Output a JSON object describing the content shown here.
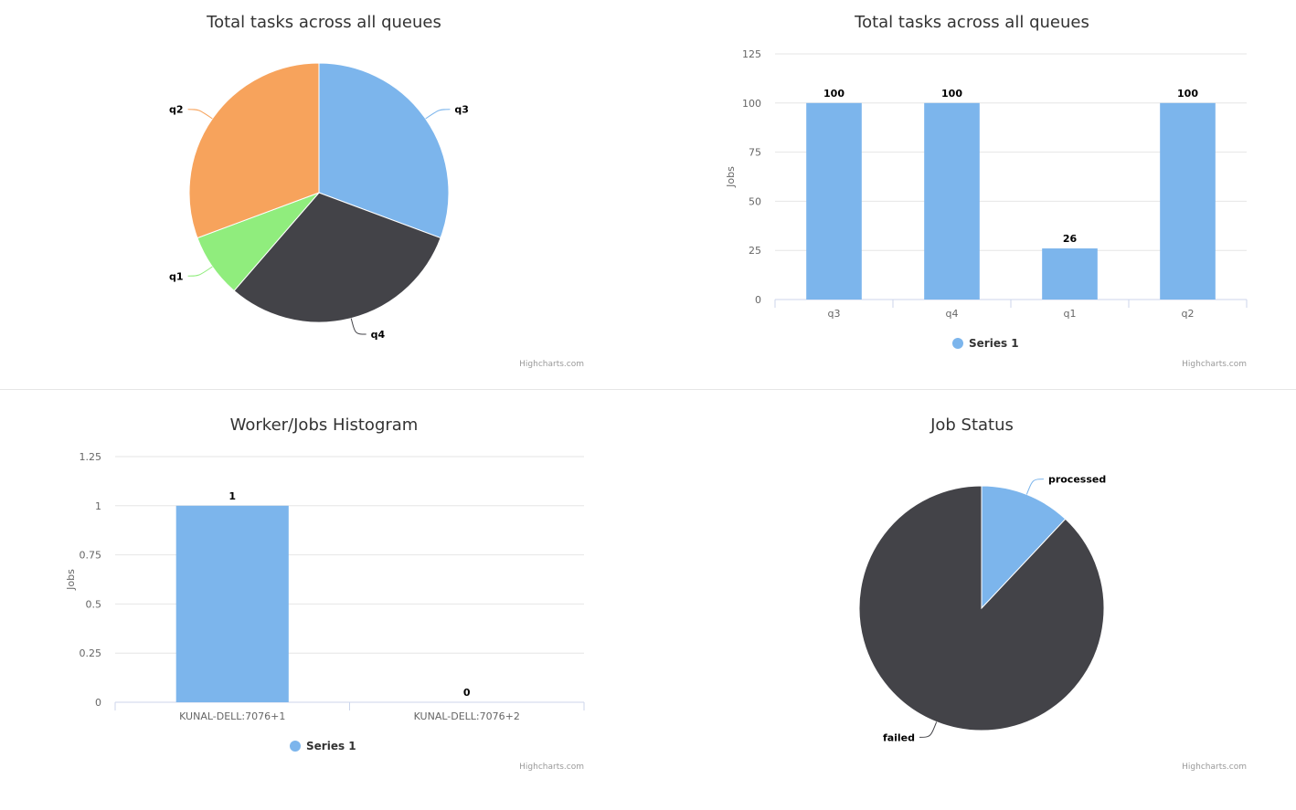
{
  "colors": {
    "blue": "#7cb5ec",
    "dark": "#434348",
    "green": "#90ed7d",
    "orange": "#f7a35c"
  },
  "credits": "Highcharts.com",
  "chart_data": [
    {
      "type": "pie",
      "title": "Total tasks across all queues",
      "labels": [
        "q3",
        "q4",
        "q1",
        "q2"
      ],
      "values": [
        100,
        100,
        26,
        100
      ],
      "colors": [
        "#7cb5ec",
        "#434348",
        "#90ed7d",
        "#f7a35c"
      ]
    },
    {
      "type": "bar",
      "title": "Total tasks across all queues",
      "categories": [
        "q3",
        "q4",
        "q1",
        "q2"
      ],
      "series": [
        {
          "name": "Series 1",
          "values": [
            100,
            100,
            26,
            100
          ]
        }
      ],
      "ylabel": "Jobs",
      "ylim": [
        0,
        125
      ],
      "yticks": [
        0,
        25,
        50,
        75,
        100,
        125
      ],
      "grid": true,
      "legend": "bottom-center"
    },
    {
      "type": "bar",
      "title": "Worker/Jobs Histogram",
      "categories": [
        "KUNAL-DELL:7076+1",
        "KUNAL-DELL:7076+2"
      ],
      "series": [
        {
          "name": "Series 1",
          "values": [
            1,
            0
          ]
        }
      ],
      "ylabel": "Jobs",
      "ylim": [
        0,
        1.25
      ],
      "yticks": [
        "0",
        "0.25",
        "0.5",
        "0.75",
        "1",
        "1.25"
      ],
      "grid": true,
      "legend": "bottom-center"
    },
    {
      "type": "pie",
      "title": "Job Status",
      "labels": [
        "processed",
        "failed"
      ],
      "values": [
        12,
        88
      ],
      "colors": [
        "#7cb5ec",
        "#434348"
      ]
    }
  ]
}
